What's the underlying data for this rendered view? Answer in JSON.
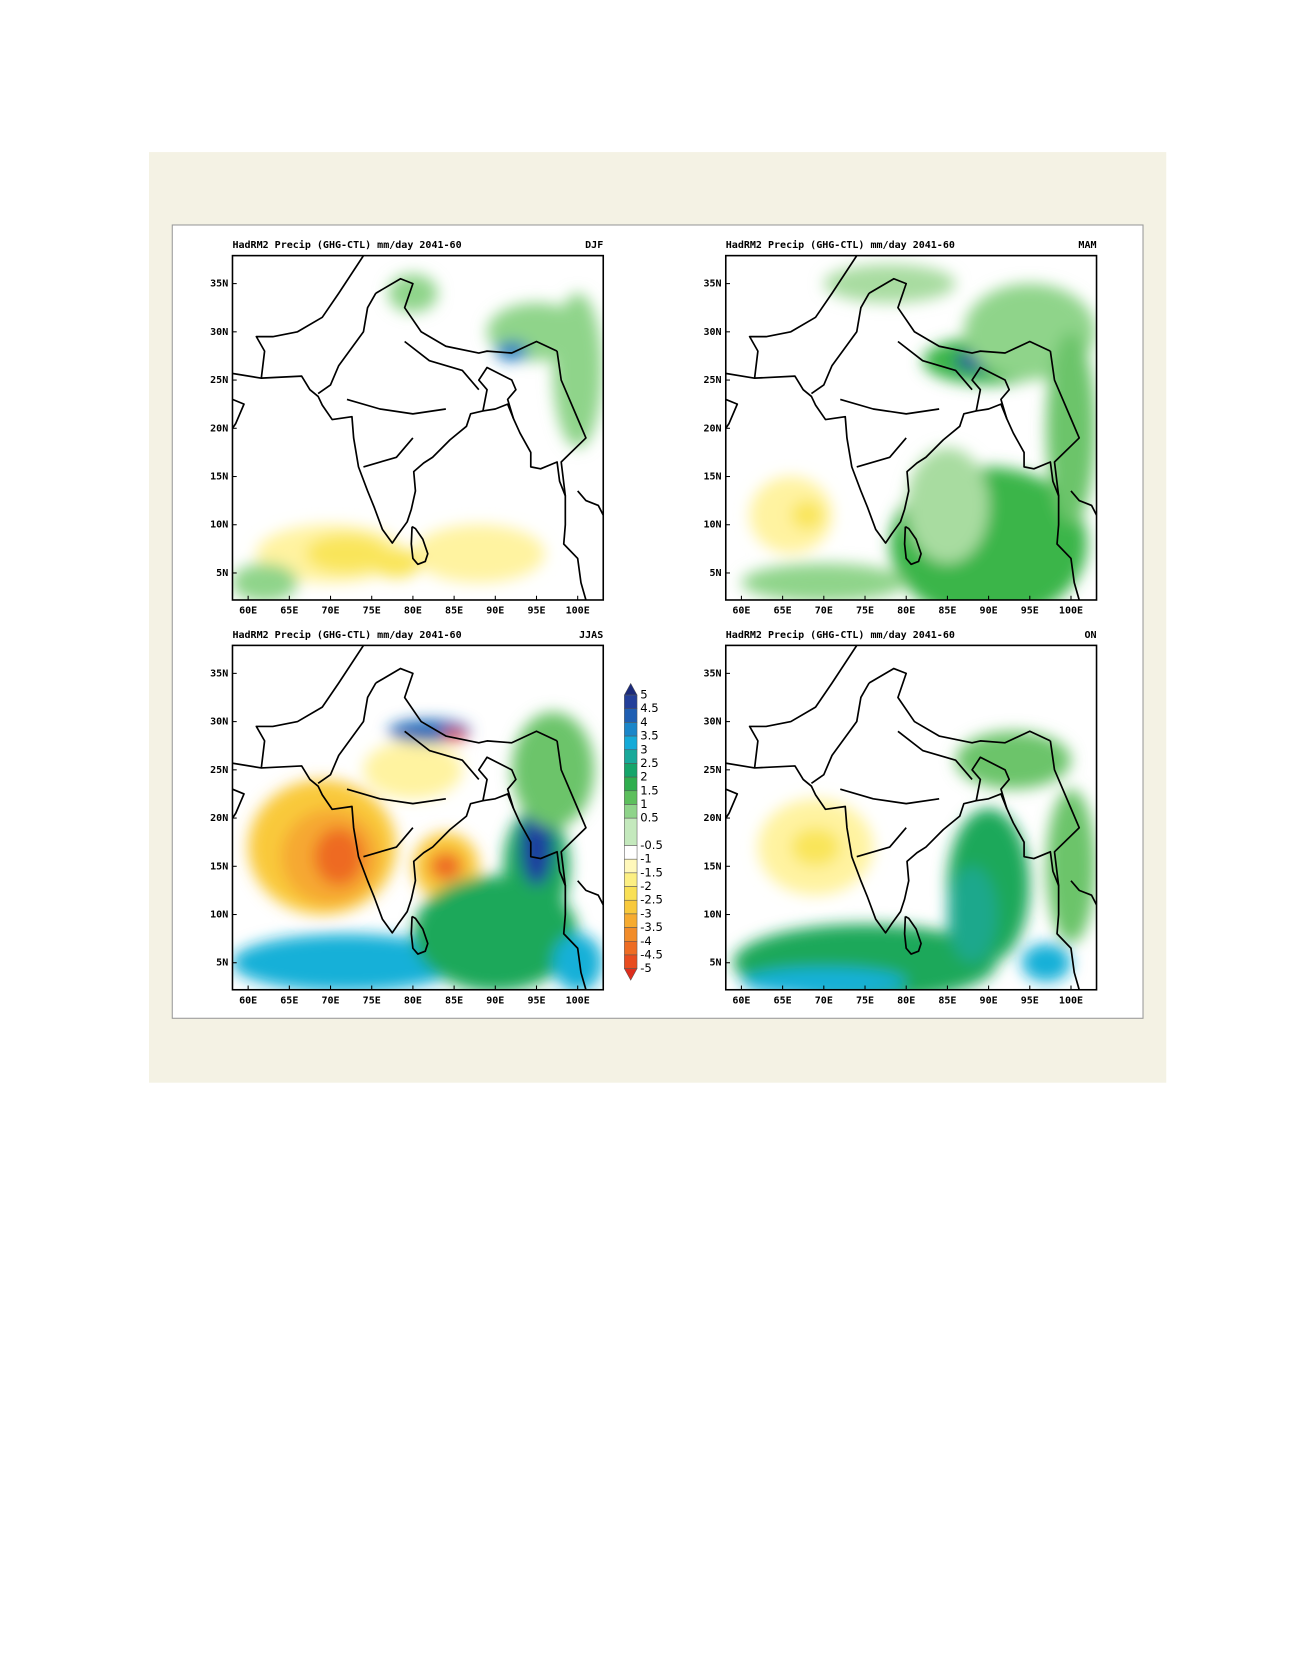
{
  "panels": [
    {
      "title": "HadRM2 Precip (GHG-CTL) mm/day 2041-60",
      "season": "DJF"
    },
    {
      "title": "HadRM2 Precip (GHG-CTL) mm/day 2041-60",
      "season": "MAM"
    },
    {
      "title": "HadRM2 Precip (GHG-CTL) mm/day 2041-60",
      "season": "JJAS"
    },
    {
      "title": "HadRM2 Precip (GHG-CTL) mm/day 2041-60",
      "season": "ON"
    }
  ],
  "xlim": [
    58.1,
    103.1
  ],
  "ylim": [
    2.2,
    37.9
  ],
  "xticks": [
    {
      "value": 60,
      "label": "60E"
    },
    {
      "value": 65,
      "label": "65E"
    },
    {
      "value": 70,
      "label": "70E"
    },
    {
      "value": 75,
      "label": "75E"
    },
    {
      "value": 80,
      "label": "80E"
    },
    {
      "value": 85,
      "label": "85E"
    },
    {
      "value": 90,
      "label": "90E"
    },
    {
      "value": 95,
      "label": "95E"
    },
    {
      "value": 100,
      "label": "100E"
    }
  ],
  "yticks": [
    {
      "value": 5,
      "label": "5N"
    },
    {
      "value": 10,
      "label": "10N"
    },
    {
      "value": 15,
      "label": "15N"
    },
    {
      "value": 20,
      "label": "20N"
    },
    {
      "value": 25,
      "label": "25N"
    },
    {
      "value": 30,
      "label": "30N"
    },
    {
      "value": 35,
      "label": "35N"
    }
  ],
  "colorbar": {
    "levels": [
      5,
      4.5,
      4,
      3.5,
      3,
      2.5,
      2,
      1.5,
      1,
      0.5,
      -0.5,
      -1,
      -1.5,
      -2,
      -2.5,
      -3,
      -3.5,
      -4,
      -4.5,
      -5
    ],
    "colors": [
      "#1b2a7a",
      "#233f9a",
      "#1f5fb3",
      "#1a86c9",
      "#14aad8",
      "#18a99a",
      "#15a56a",
      "#2fae4e",
      "#5cbf5c",
      "#8fd48a",
      "#c4e9bd",
      "#ffffff",
      "#fff8bb",
      "#fcef83",
      "#f9e055",
      "#f8c93b",
      "#f6ab30",
      "#f28c29",
      "#ee6c23",
      "#e84c1f",
      "#dd2e1d"
    ]
  }
}
